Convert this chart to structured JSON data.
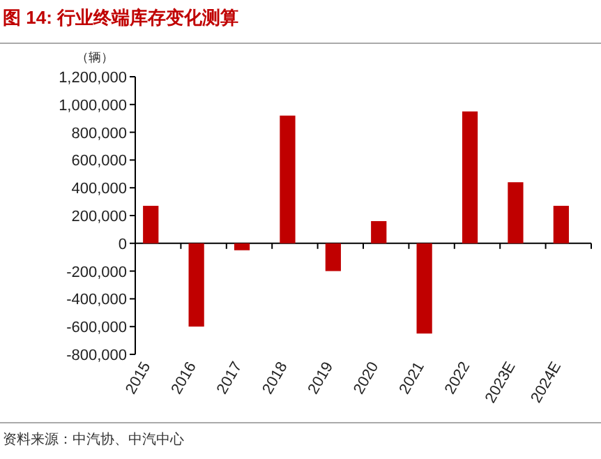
{
  "chart_data": {
    "type": "bar",
    "title": "图 14: 行业终端库存变化测算",
    "ylabel": "（辆）",
    "categories": [
      "2015",
      "2016",
      "2017",
      "2018",
      "2019",
      "2020",
      "2021",
      "2022",
      "2023E",
      "2024E"
    ],
    "values": [
      270000,
      -600000,
      -50000,
      920000,
      -200000,
      160000,
      -650000,
      950000,
      440000,
      270000
    ],
    "color": "#c00000",
    "ylim": [
      -800000,
      1200000
    ],
    "yticks": [
      {
        "value": -800000,
        "label": "-800,000"
      },
      {
        "value": -600000,
        "label": "-600,000"
      },
      {
        "value": -400000,
        "label": "-400,000"
      },
      {
        "value": -200000,
        "label": "-200,000"
      },
      0,
      {
        "value": 200000,
        "label": "200,000"
      },
      {
        "value": 400000,
        "label": "400,000"
      },
      {
        "value": 600000,
        "label": "600,000"
      },
      {
        "value": 800000,
        "label": "800,000"
      },
      {
        "value": 1000000,
        "label": "1,000,000"
      },
      {
        "value": 1200000,
        "label": "1,200,000"
      }
    ],
    "annotations": [
      "资料来源：中汽协、中汽中心"
    ]
  }
}
